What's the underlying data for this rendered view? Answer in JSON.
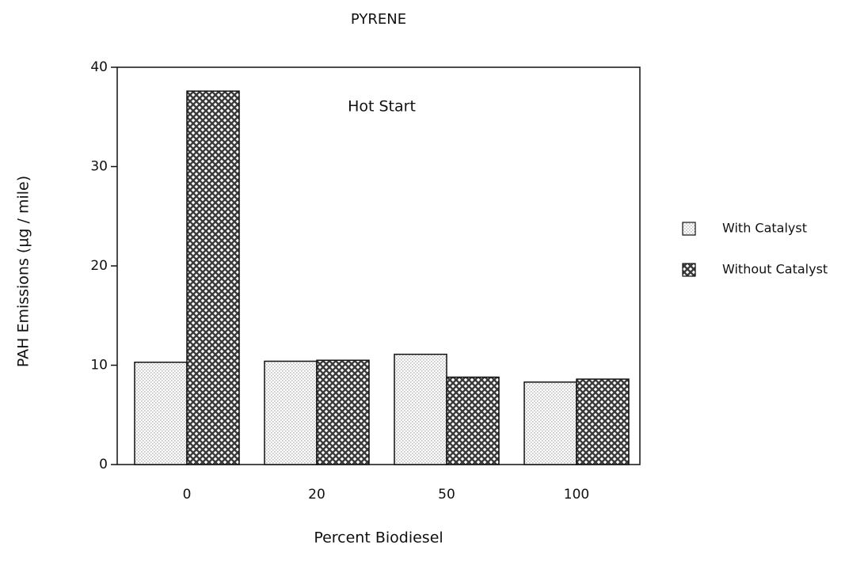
{
  "chart_data": {
    "type": "bar",
    "title": "PYRENE",
    "annotation": "Hot Start",
    "xlabel": "Percent Biodiesel",
    "ylabel": "PAH Emissions (µg / mile)",
    "categories": [
      "0",
      "20",
      "50",
      "100"
    ],
    "series": [
      {
        "name": "With Catalyst",
        "color": "#bdbdbd",
        "values": [
          10.3,
          10.4,
          11.1,
          8.3
        ]
      },
      {
        "name": "Without Catalyst",
        "color": "#3a3a3a",
        "values": [
          37.6,
          10.5,
          8.8,
          8.6
        ]
      }
    ],
    "ylim": [
      0,
      40
    ],
    "yticks": [
      0,
      10,
      20,
      30,
      40
    ],
    "grid": false,
    "legend": "right"
  }
}
